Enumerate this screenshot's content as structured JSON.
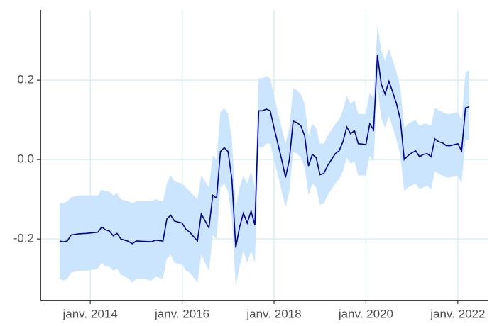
{
  "chart_data": {
    "type": "line",
    "x": [
      "2013-05",
      "2013-06",
      "2013-07",
      "2013-08",
      "2013-10",
      "2013-12",
      "2014-03",
      "2014-04",
      "2014-05",
      "2014-06",
      "2014-07",
      "2014-08",
      "2014-09",
      "2014-11",
      "2014-12",
      "2015-01",
      "2015-03",
      "2015-05",
      "2015-06",
      "2015-08",
      "2015-09",
      "2015-10",
      "2015-11",
      "2016-01",
      "2016-02",
      "2016-03",
      "2016-05",
      "2016-06",
      "2016-08",
      "2016-09",
      "2016-10",
      "2016-11",
      "2016-12",
      "2017-01",
      "2017-02",
      "2017-03",
      "2017-04",
      "2017-05",
      "2017-06",
      "2017-07",
      "2017-08",
      "2017-09",
      "2017-10",
      "2017-11",
      "2017-12",
      "2018-01",
      "2018-02",
      "2018-03",
      "2018-04",
      "2018-05",
      "2018-06",
      "2018-07",
      "2018-08",
      "2018-09",
      "2018-10",
      "2018-11",
      "2018-12",
      "2019-01",
      "2019-02",
      "2019-03",
      "2019-04",
      "2019-05",
      "2019-06",
      "2019-07",
      "2019-08",
      "2019-09",
      "2019-10",
      "2019-11",
      "2020-01",
      "2020-02",
      "2020-03",
      "2020-04",
      "2020-05",
      "2020-06",
      "2020-07",
      "2020-08",
      "2020-09",
      "2020-10",
      "2020-11",
      "2020-12",
      "2021-01",
      "2021-02",
      "2021-03",
      "2021-04",
      "2021-05",
      "2021-06",
      "2021-07",
      "2021-08",
      "2021-09",
      "2021-10",
      "2021-11",
      "2022-01",
      "2022-02",
      "2022-03",
      "2022-04"
    ],
    "series": [
      {
        "color": "#00008b",
        "values": [
          -0.205,
          -0.207,
          -0.205,
          -0.19,
          -0.187,
          -0.186,
          -0.183,
          -0.17,
          -0.177,
          -0.18,
          -0.192,
          -0.186,
          -0.2,
          -0.206,
          -0.212,
          -0.205,
          -0.206,
          -0.207,
          -0.203,
          -0.205,
          -0.15,
          -0.14,
          -0.155,
          -0.16,
          -0.176,
          -0.183,
          -0.205,
          -0.137,
          -0.172,
          -0.09,
          -0.097,
          0.02,
          0.03,
          0.02,
          -0.05,
          -0.222,
          -0.17,
          -0.135,
          -0.16,
          -0.13,
          -0.165,
          0.123,
          0.123,
          0.127,
          0.123,
          0.08,
          0.04,
          0.0,
          -0.045,
          0.0,
          0.097,
          0.093,
          0.085,
          0.06,
          -0.016,
          0.013,
          0.005,
          -0.038,
          -0.035,
          -0.015,
          0.0,
          0.015,
          0.022,
          0.045,
          0.082,
          0.065,
          0.073,
          0.04,
          0.038,
          0.09,
          0.075,
          0.263,
          0.19,
          0.165,
          0.197,
          0.17,
          0.14,
          0.1,
          0.0,
          0.01,
          0.017,
          0.022,
          0.007,
          0.013,
          0.015,
          0.007,
          0.052,
          0.045,
          0.042,
          0.035,
          0.035,
          0.04,
          0.022,
          0.13,
          0.133
        ]
      }
    ],
    "band": {
      "color": "#cce5ff",
      "lower": [
        -0.3,
        -0.305,
        -0.3,
        -0.285,
        -0.28,
        -0.28,
        -0.275,
        -0.26,
        -0.27,
        -0.27,
        -0.28,
        -0.275,
        -0.29,
        -0.3,
        -0.31,
        -0.3,
        -0.3,
        -0.305,
        -0.295,
        -0.3,
        -0.25,
        -0.24,
        -0.26,
        -0.265,
        -0.28,
        -0.285,
        -0.31,
        -0.24,
        -0.28,
        -0.19,
        -0.2,
        -0.07,
        -0.06,
        -0.08,
        -0.15,
        -0.32,
        -0.27,
        -0.23,
        -0.26,
        -0.23,
        -0.26,
        0.03,
        0.03,
        0.04,
        0.04,
        0.0,
        -0.04,
        -0.08,
        -0.12,
        -0.08,
        0.02,
        0.015,
        0.005,
        -0.02,
        -0.09,
        -0.06,
        -0.07,
        -0.115,
        -0.11,
        -0.09,
        -0.075,
        -0.06,
        -0.05,
        -0.03,
        0.005,
        -0.01,
        -0.005,
        -0.04,
        -0.04,
        0.01,
        -0.005,
        0.18,
        0.105,
        0.08,
        0.11,
        0.08,
        0.05,
        0.01,
        -0.08,
        -0.07,
        -0.065,
        -0.06,
        -0.075,
        -0.07,
        -0.065,
        -0.075,
        -0.03,
        -0.035,
        -0.04,
        -0.045,
        -0.045,
        -0.04,
        -0.06,
        0.05,
        0.05
      ],
      "upper": [
        -0.11,
        -0.11,
        -0.105,
        -0.095,
        -0.09,
        -0.09,
        -0.09,
        -0.075,
        -0.08,
        -0.08,
        -0.09,
        -0.085,
        -0.1,
        -0.105,
        -0.11,
        -0.105,
        -0.105,
        -0.105,
        -0.1,
        -0.105,
        -0.06,
        -0.04,
        -0.055,
        -0.06,
        -0.07,
        -0.08,
        -0.1,
        -0.04,
        -0.07,
        0.01,
        0.0,
        0.12,
        0.13,
        0.115,
        0.05,
        -0.12,
        -0.07,
        -0.04,
        -0.06,
        -0.03,
        -0.07,
        0.205,
        0.205,
        0.21,
        0.205,
        0.16,
        0.12,
        0.08,
        0.04,
        0.08,
        0.18,
        0.175,
        0.165,
        0.14,
        0.06,
        0.09,
        0.08,
        0.04,
        0.04,
        0.06,
        0.075,
        0.09,
        0.1,
        0.125,
        0.16,
        0.14,
        0.15,
        0.115,
        0.115,
        0.17,
        0.155,
        0.34,
        0.275,
        0.25,
        0.28,
        0.25,
        0.22,
        0.18,
        0.08,
        0.09,
        0.095,
        0.1,
        0.085,
        0.09,
        0.09,
        0.085,
        0.13,
        0.125,
        0.12,
        0.115,
        0.115,
        0.12,
        0.1,
        0.22,
        0.225
      ]
    },
    "xlim": [
      "2012-12",
      "2022-09"
    ],
    "xticks": [
      {
        "value": "2014-01",
        "label": "janv. 2014"
      },
      {
        "value": "2016-01",
        "label": "janv. 2016"
      },
      {
        "value": "2018-01",
        "label": "janv. 2018"
      },
      {
        "value": "2020-01",
        "label": "janv. 2020"
      },
      {
        "value": "2022-01",
        "label": "janv. 2022"
      }
    ],
    "ylim": [
      -0.355,
      0.377
    ],
    "yticks": [
      {
        "value": -0.2,
        "label": "-0.2"
      },
      {
        "value": 0,
        "label": "0.0"
      },
      {
        "value": 0.2,
        "label": "0.2"
      }
    ],
    "grid": true
  }
}
